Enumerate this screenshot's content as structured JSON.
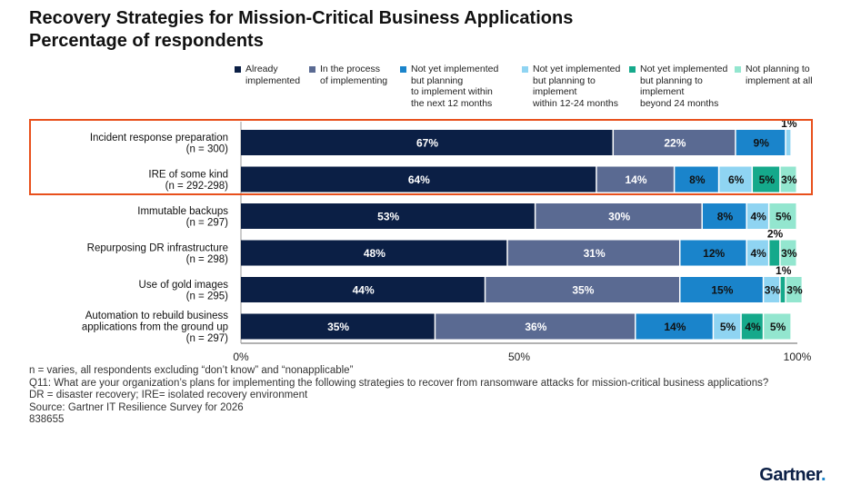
{
  "chart_data": {
    "type": "bar",
    "orientation": "horizontal",
    "stacked": true,
    "title": "Recovery Strategies for Mission-Critical Business Applications",
    "subtitle": "Percentage of respondents",
    "categories": [
      [
        "Incident response preparation",
        "(n = 300)"
      ],
      [
        "IRE of some kind",
        "(n = 292-298)"
      ],
      [
        "Immutable backups",
        "(n = 297)"
      ],
      [
        "Repurposing DR infrastructure",
        "(n = 298)"
      ],
      [
        "Use of gold images",
        "(n = 295)"
      ],
      [
        "Automation to rebuild business",
        "applications from the ground up",
        "(n = 297)"
      ]
    ],
    "series": [
      {
        "name": "Already\nimplemented",
        "color": "#0b1f45",
        "text_color": "#ffffff",
        "values": [
          67,
          64,
          53,
          48,
          44,
          35
        ]
      },
      {
        "name": "In the process\nof implementing",
        "color": "#5a6a92",
        "text_color": "#ffffff",
        "values": [
          22,
          14,
          30,
          31,
          35,
          36
        ]
      },
      {
        "name": "Not yet implemented\nbut planning\nto implement within\nthe next 12 months",
        "color": "#1a84cb",
        "text_color": "#111111",
        "values": [
          9,
          8,
          8,
          12,
          15,
          14
        ]
      },
      {
        "name": "Not yet implemented\nbut planning to\nimplement\nwithin 12-24 months",
        "color": "#8fd4f2",
        "text_color": "#111111",
        "values": [
          1,
          6,
          4,
          4,
          3,
          5
        ]
      },
      {
        "name": "Not yet implemented\nbut planning to\nimplement\nbeyond 24 months",
        "color": "#15a98b",
        "text_color": "#111111",
        "values": [
          0,
          5,
          0,
          2,
          1,
          4
        ]
      },
      {
        "name": "Not planning to\nimplement at all",
        "color": "#93e6cf",
        "text_color": "#111111",
        "values": [
          0,
          3,
          5,
          3,
          3,
          5
        ]
      }
    ],
    "xlim": [
      0,
      100
    ],
    "xticks": [
      "0%",
      "50%",
      "100%"
    ],
    "grid": false,
    "legend_position": "top",
    "highlight_color": "#e8501c",
    "highlighted_categories": [
      0,
      1
    ]
  },
  "notes": [
    "n = varies, all respondents excluding “don’t know” and “nonapplicable”",
    "Q11: What are your organization’s plans for implementing the following strategies to recover from ransomware attacks for mission-critical business applications?",
    "DR = disaster recovery; IRE= isolated recovery environment",
    "Source: Gartner IT Resilience Survey for 2026",
    "838655"
  ],
  "logo": "Gartner."
}
